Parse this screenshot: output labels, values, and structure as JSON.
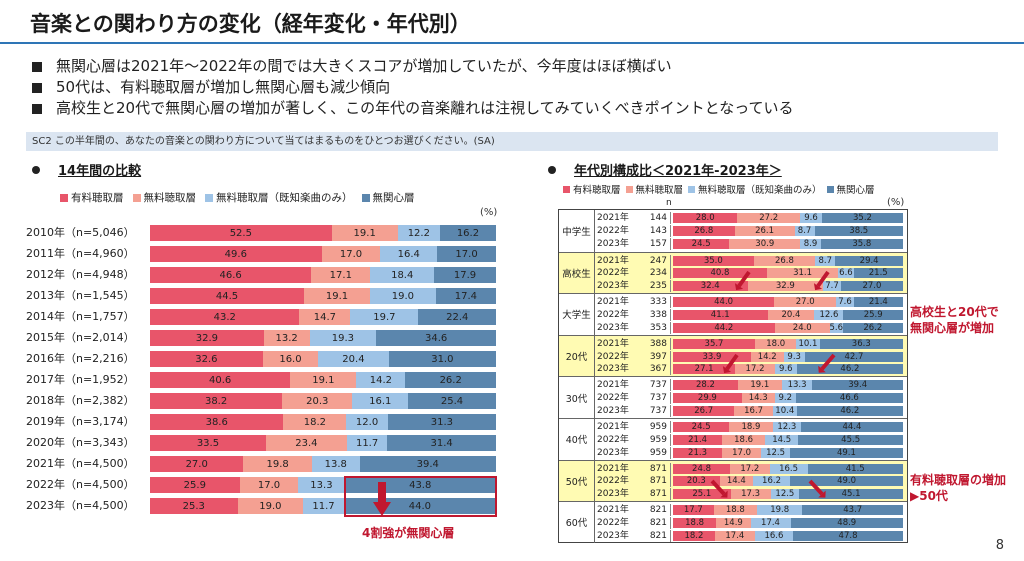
{
  "title": "音楽との関わり方の変化（経年変化・年代別）",
  "bullets": [
    "無関心層は2021年～2022年の間では大きくスコアが増加していたが、今年度はほぼ横ばい",
    "50代は、有料聴取層が増加し無関心層も減少傾向",
    "高校生と20代で無関心層の増加が著しく、この年代の音楽離れは注視してみていくべきポイントとなっている"
  ],
  "question": "SC2  この半年間の、あなたの音楽との関わり方について当てはまるものをひとつお選びください。(SA)",
  "colors": {
    "paid": "#e8556a",
    "free": "#f4a092",
    "free_known": "#9ec3e6",
    "indifferent": "#5b86ad",
    "accent": "#c0172f",
    "rule": "#2e75b6"
  },
  "left": {
    "heading": "14年間の比較",
    "pct_note": "(%)",
    "callout": "4割強が無関心層"
  },
  "right": {
    "heading": "年代別構成比＜2021年-2023年＞",
    "pct_note": "(%)",
    "n_label": "n",
    "callout_1": [
      "高校生と20代で",
      "無関心層が増加"
    ],
    "callout_2": [
      "有料聴取層の増加",
      "▶50代"
    ]
  },
  "legend": [
    "有料聴取層",
    "無料聴取層",
    "無料聴取層（既知楽曲のみ）",
    "無関心層"
  ],
  "page_number": "8",
  "chart_data": [
    {
      "type": "bar",
      "stacked": true,
      "orientation": "horizontal",
      "title": "14年間の比較",
      "unit": "%",
      "categories": [
        "2010年（n=5,046）",
        "2011年（n=4,960）",
        "2012年（n=4,948）",
        "2013年（n=1,545）",
        "2014年（n=1,757）",
        "2015年（n=2,014）",
        "2016年（n=2,216）",
        "2017年（n=1,952）",
        "2018年（n=2,382）",
        "2019年（n=3,174）",
        "2020年（n=3,343）",
        "2021年（n=4,500）",
        "2022年（n=4,500）",
        "2023年（n=4,500）"
      ],
      "series": [
        {
          "name": "有料聴取層",
          "values": [
            52.5,
            49.6,
            46.6,
            44.5,
            43.2,
            32.9,
            32.6,
            40.6,
            38.2,
            38.6,
            33.5,
            27.0,
            25.9,
            25.3
          ]
        },
        {
          "name": "無料聴取層",
          "values": [
            19.1,
            17.0,
            17.1,
            19.1,
            14.7,
            13.2,
            16.0,
            19.1,
            20.3,
            18.2,
            23.4,
            19.8,
            17.0,
            19.0
          ]
        },
        {
          "name": "無料聴取層（既知楽曲のみ）",
          "values": [
            12.2,
            16.4,
            18.4,
            19.0,
            19.7,
            19.3,
            20.4,
            14.2,
            16.1,
            12.0,
            11.7,
            13.8,
            13.3,
            11.7
          ]
        },
        {
          "name": "無関心層",
          "values": [
            16.2,
            17.0,
            17.9,
            17.4,
            22.4,
            34.6,
            31.0,
            26.2,
            25.4,
            31.3,
            31.4,
            39.4,
            43.8,
            44.0
          ]
        }
      ],
      "xlim": [
        0,
        100
      ]
    },
    {
      "type": "bar",
      "stacked": true,
      "orientation": "horizontal",
      "title": "年代別構成比＜2021年-2023年＞",
      "unit": "%",
      "groups": [
        {
          "name": "中学生",
          "highlight": false,
          "rows": [
            {
              "year": "2021年",
              "n": "144",
              "values": [
                28.0,
                27.2,
                9.6,
                35.2
              ]
            },
            {
              "year": "2022年",
              "n": "143",
              "values": [
                26.8,
                26.1,
                8.7,
                38.5
              ]
            },
            {
              "year": "2023年",
              "n": "157",
              "values": [
                24.5,
                30.9,
                8.9,
                35.8
              ]
            }
          ]
        },
        {
          "name": "高校生",
          "highlight": true,
          "rows": [
            {
              "year": "2021年",
              "n": "247",
              "values": [
                35.0,
                26.8,
                8.7,
                29.4
              ]
            },
            {
              "year": "2022年",
              "n": "234",
              "values": [
                40.8,
                31.1,
                6.6,
                21.5
              ]
            },
            {
              "year": "2023年",
              "n": "235",
              "values": [
                32.4,
                32.9,
                7.7,
                27.0
              ]
            }
          ]
        },
        {
          "name": "大学生",
          "highlight": false,
          "rows": [
            {
              "year": "2021年",
              "n": "333",
              "values": [
                44.0,
                27.0,
                7.6,
                21.4
              ]
            },
            {
              "year": "2022年",
              "n": "338",
              "values": [
                41.1,
                20.4,
                12.6,
                25.9
              ]
            },
            {
              "year": "2023年",
              "n": "353",
              "values": [
                44.2,
                24.0,
                5.6,
                26.2
              ]
            }
          ]
        },
        {
          "name": "20代",
          "highlight": true,
          "rows": [
            {
              "year": "2021年",
              "n": "388",
              "values": [
                35.7,
                18.0,
                10.1,
                36.3
              ]
            },
            {
              "year": "2022年",
              "n": "397",
              "values": [
                33.9,
                14.2,
                9.3,
                42.7
              ]
            },
            {
              "year": "2023年",
              "n": "367",
              "values": [
                27.1,
                17.2,
                9.6,
                46.2
              ]
            }
          ]
        },
        {
          "name": "30代",
          "highlight": false,
          "rows": [
            {
              "year": "2021年",
              "n": "737",
              "values": [
                28.2,
                19.1,
                13.3,
                39.4
              ]
            },
            {
              "year": "2022年",
              "n": "737",
              "values": [
                29.9,
                14.3,
                9.2,
                46.6
              ]
            },
            {
              "year": "2023年",
              "n": "737",
              "values": [
                26.7,
                16.7,
                10.4,
                46.2
              ]
            }
          ]
        },
        {
          "name": "40代",
          "highlight": false,
          "rows": [
            {
              "year": "2021年",
              "n": "959",
              "values": [
                24.5,
                18.9,
                12.3,
                44.4
              ]
            },
            {
              "year": "2022年",
              "n": "959",
              "values": [
                21.4,
                18.6,
                14.5,
                45.5
              ]
            },
            {
              "year": "2023年",
              "n": "959",
              "values": [
                21.3,
                17.0,
                12.5,
                49.1
              ]
            }
          ]
        },
        {
          "name": "50代",
          "highlight": true,
          "rows": [
            {
              "year": "2021年",
              "n": "871",
              "values": [
                24.8,
                17.2,
                16.5,
                41.5
              ]
            },
            {
              "year": "2022年",
              "n": "871",
              "values": [
                20.3,
                14.4,
                16.2,
                49.0
              ]
            },
            {
              "year": "2023年",
              "n": "871",
              "values": [
                25.1,
                17.3,
                12.5,
                45.1
              ]
            }
          ]
        },
        {
          "name": "60代",
          "highlight": false,
          "rows": [
            {
              "year": "2021年",
              "n": "821",
              "values": [
                17.7,
                18.8,
                19.8,
                43.7
              ]
            },
            {
              "year": "2022年",
              "n": "821",
              "values": [
                18.8,
                14.9,
                17.4,
                48.9
              ]
            },
            {
              "year": "2023年",
              "n": "821",
              "values": [
                18.2,
                17.4,
                16.6,
                47.8
              ]
            }
          ]
        }
      ],
      "xlim": [
        0,
        100
      ]
    }
  ]
}
